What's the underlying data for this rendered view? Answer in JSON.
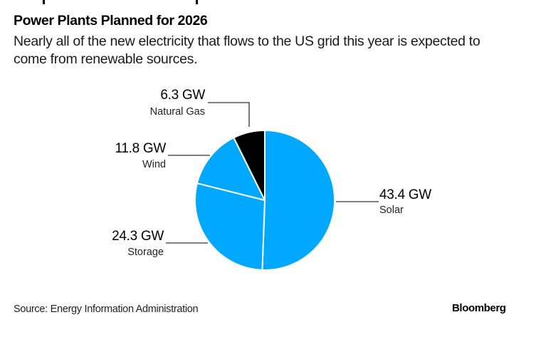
{
  "header": {
    "title": "Power Plants Planned for 2026",
    "subtitle": "Nearly all of the new electricity that flows to the US grid this year is expected to come from renewable sources."
  },
  "footer": {
    "source": "Source: Energy Information Administration",
    "logo": "Bloomberg"
  },
  "chart_data": {
    "type": "pie",
    "title": "Power Plants Planned for 2026",
    "unit": "GW",
    "start_angle": "12 o'clock",
    "direction": "clockwise",
    "slices": [
      {
        "label": "Solar",
        "value": 43.4,
        "value_label": "43.4 GW",
        "color": "#00a9ff"
      },
      {
        "label": "Storage",
        "value": 24.3,
        "value_label": "24.3 GW",
        "color": "#00a9ff"
      },
      {
        "label": "Wind",
        "value": 11.8,
        "value_label": "11.8 GW",
        "color": "#00a9ff"
      },
      {
        "label": "Natural Gas",
        "value": 6.3,
        "value_label": "6.3 GW",
        "color": "#000000"
      }
    ],
    "legend": "none (direct labels)"
  }
}
